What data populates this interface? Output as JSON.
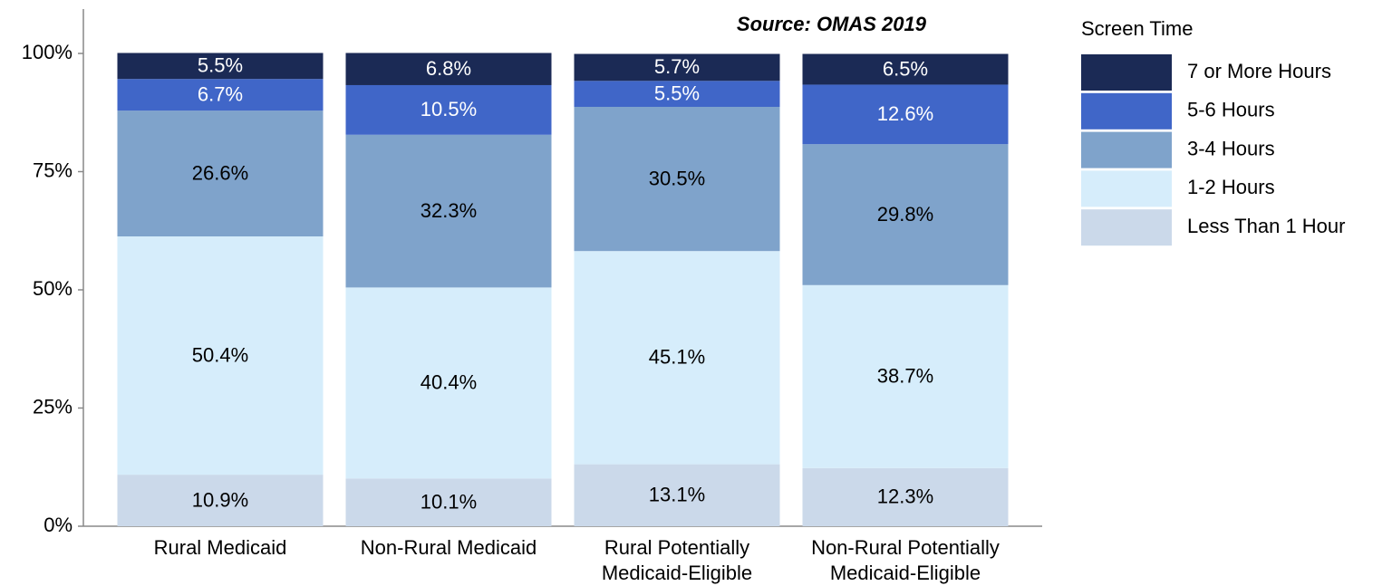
{
  "chart_data": {
    "type": "stacked_bar",
    "annotation": "Source: OMAS 2019",
    "legend_title": "Screen Time",
    "legend": "right",
    "categories": [
      "Rural Medicaid",
      "Non-Rural Medicaid",
      "Rural Potentially Medicaid-Eligible",
      "Non-Rural Potentially Medicaid-Eligible"
    ],
    "series": [
      {
        "name": "Less Than 1 Hour",
        "color": "#cbd9ea",
        "values": [
          10.9,
          10.1,
          13.1,
          12.3
        ],
        "value_labels": [
          "10.9%",
          "10.1%",
          "13.1%",
          "12.3%"
        ]
      },
      {
        "name": "1-2 Hours",
        "color": "#d6edfb",
        "values": [
          50.4,
          40.4,
          45.1,
          38.7
        ],
        "value_labels": [
          "50.4%",
          "40.4%",
          "45.1%",
          "38.7%"
        ]
      },
      {
        "name": "3-4 Hours",
        "color": "#7fa3cb",
        "values": [
          26.6,
          32.3,
          30.5,
          29.8
        ],
        "value_labels": [
          "26.6%",
          "32.3%",
          "30.5%",
          "29.8%"
        ]
      },
      {
        "name": "5-6 Hours",
        "color": "#4066c8",
        "values": [
          6.7,
          10.5,
          5.5,
          12.6
        ],
        "value_labels": [
          "6.7%",
          "10.5%",
          "5.5%",
          "12.6%"
        ]
      },
      {
        "name": "7 or More Hours",
        "color": "#1b2a55",
        "values": [
          5.5,
          6.8,
          5.7,
          6.5
        ],
        "value_labels": [
          "5.5%",
          "6.8%",
          "5.7%",
          "6.5%"
        ]
      }
    ],
    "ylim": [
      0,
      100
    ],
    "yticks": [
      {
        "value": 0,
        "label": "0%"
      },
      {
        "value": 25,
        "label": "25%"
      },
      {
        "value": 50,
        "label": "50%"
      },
      {
        "value": 75,
        "label": "75%"
      },
      {
        "value": 100,
        "label": "100%"
      }
    ],
    "grid": false
  }
}
